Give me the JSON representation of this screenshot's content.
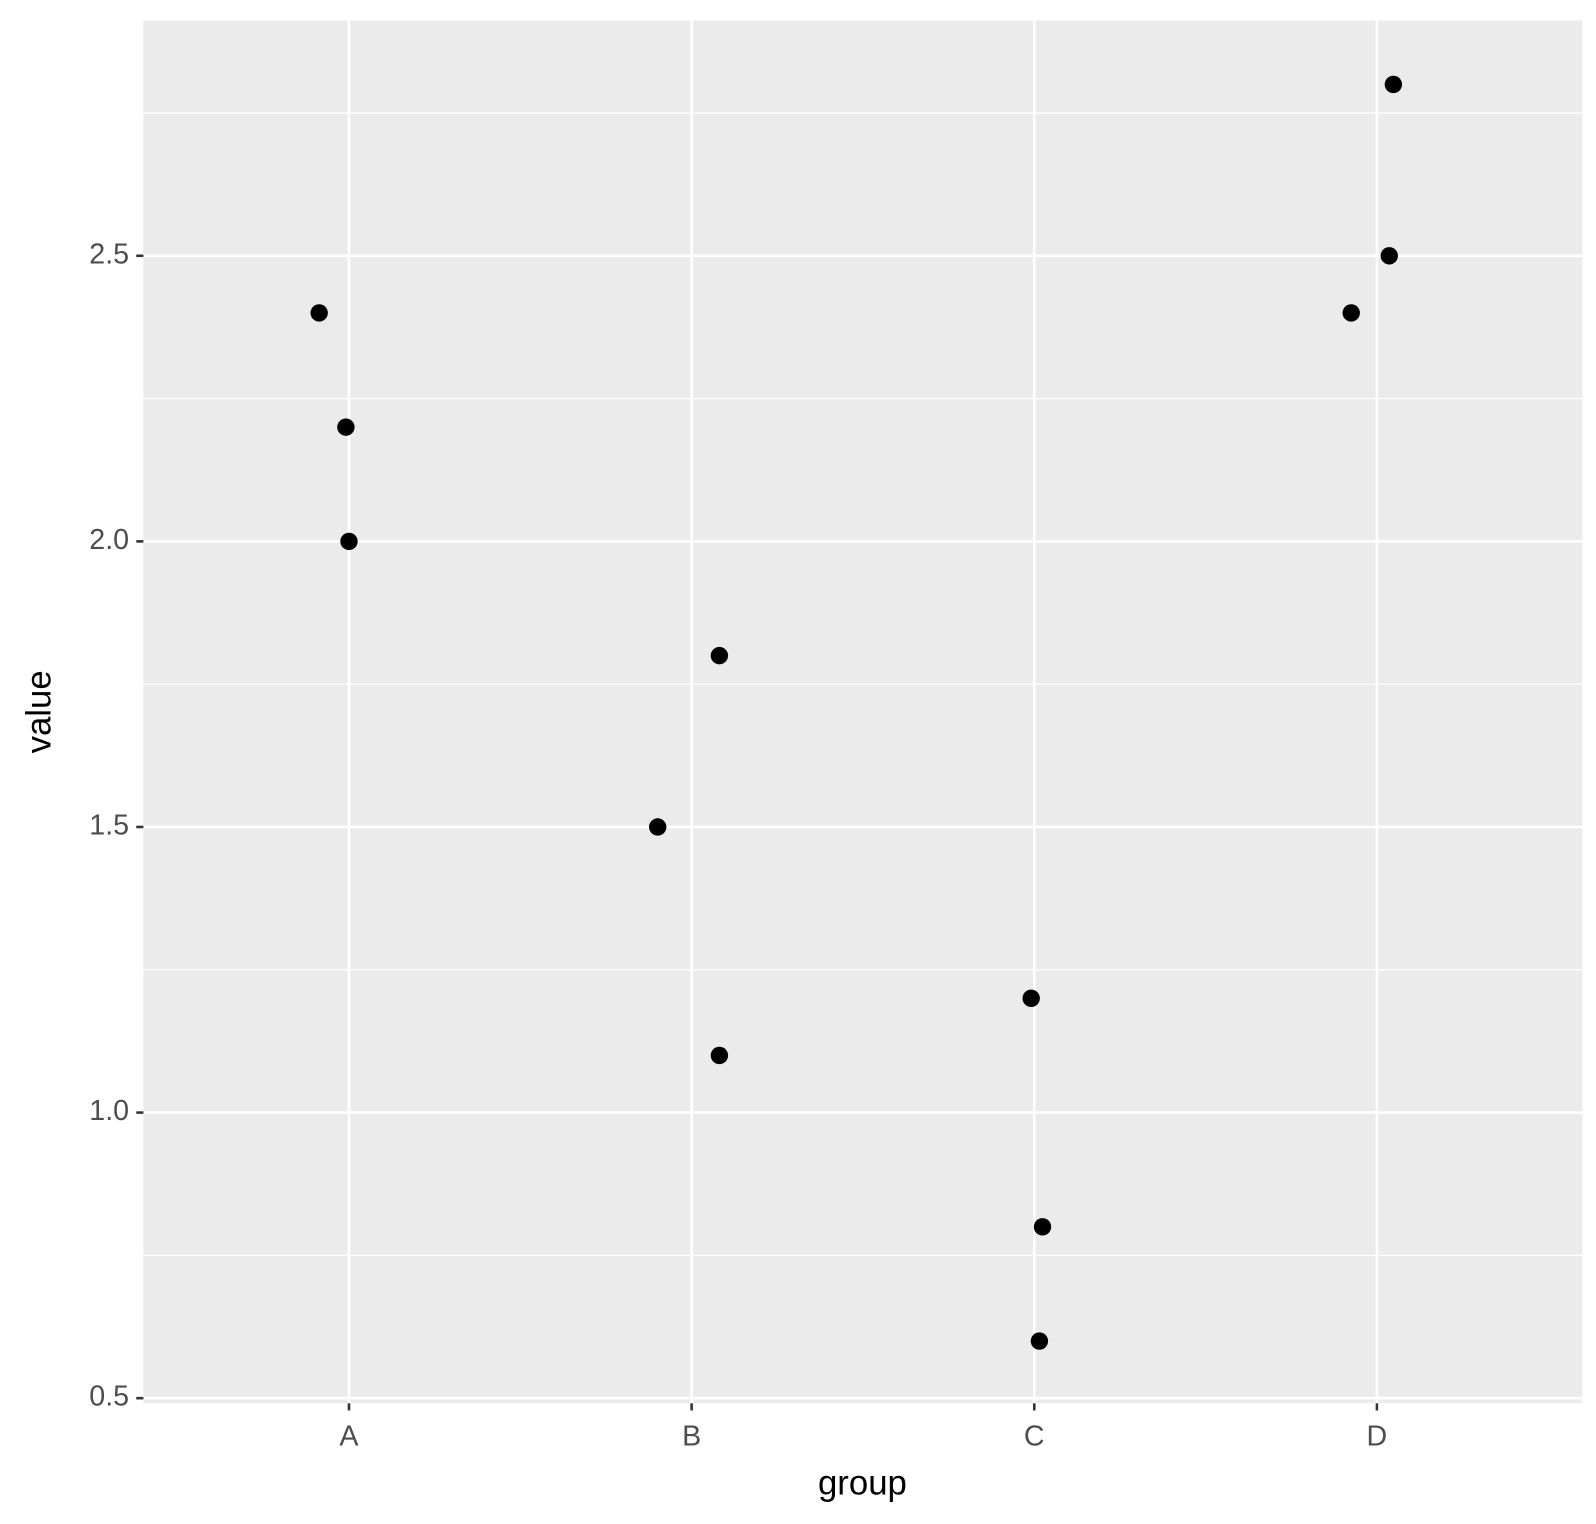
{
  "chart_data": {
    "type": "scatter",
    "x_label": "group",
    "y_label": "value",
    "xlim": [
      0.4,
      4.6
    ],
    "xticks": [
      {
        "value": 1,
        "label": "A"
      },
      {
        "value": 2,
        "label": "B"
      },
      {
        "value": 3,
        "label": "C"
      },
      {
        "value": 4,
        "label": "D"
      }
    ],
    "ylim": [
      0.491,
      2.912
    ],
    "yticks": [
      {
        "value": 0.5,
        "label": "0.5"
      },
      {
        "value": 1,
        "label": "1.0"
      },
      {
        "value": 1.5,
        "label": "1.5"
      },
      {
        "value": 2,
        "label": "2.0"
      },
      {
        "value": 2.5,
        "label": "2.5"
      }
    ],
    "y_minor_ticks": [
      0.75,
      1.25,
      1.75,
      2.25,
      2.75
    ],
    "grid": true,
    "color": "#000000",
    "x": [
      0.913,
      0.991,
      1.0,
      2.081,
      1.901,
      2.081,
      2.991,
      3.024,
      3.015,
      4.048,
      4.036,
      3.925
    ],
    "values": [
      2.4,
      2.2,
      2.0,
      1.8,
      1.5,
      1.1,
      1.2,
      0.8,
      0.6,
      2.8,
      2.5,
      2.4
    ]
  }
}
